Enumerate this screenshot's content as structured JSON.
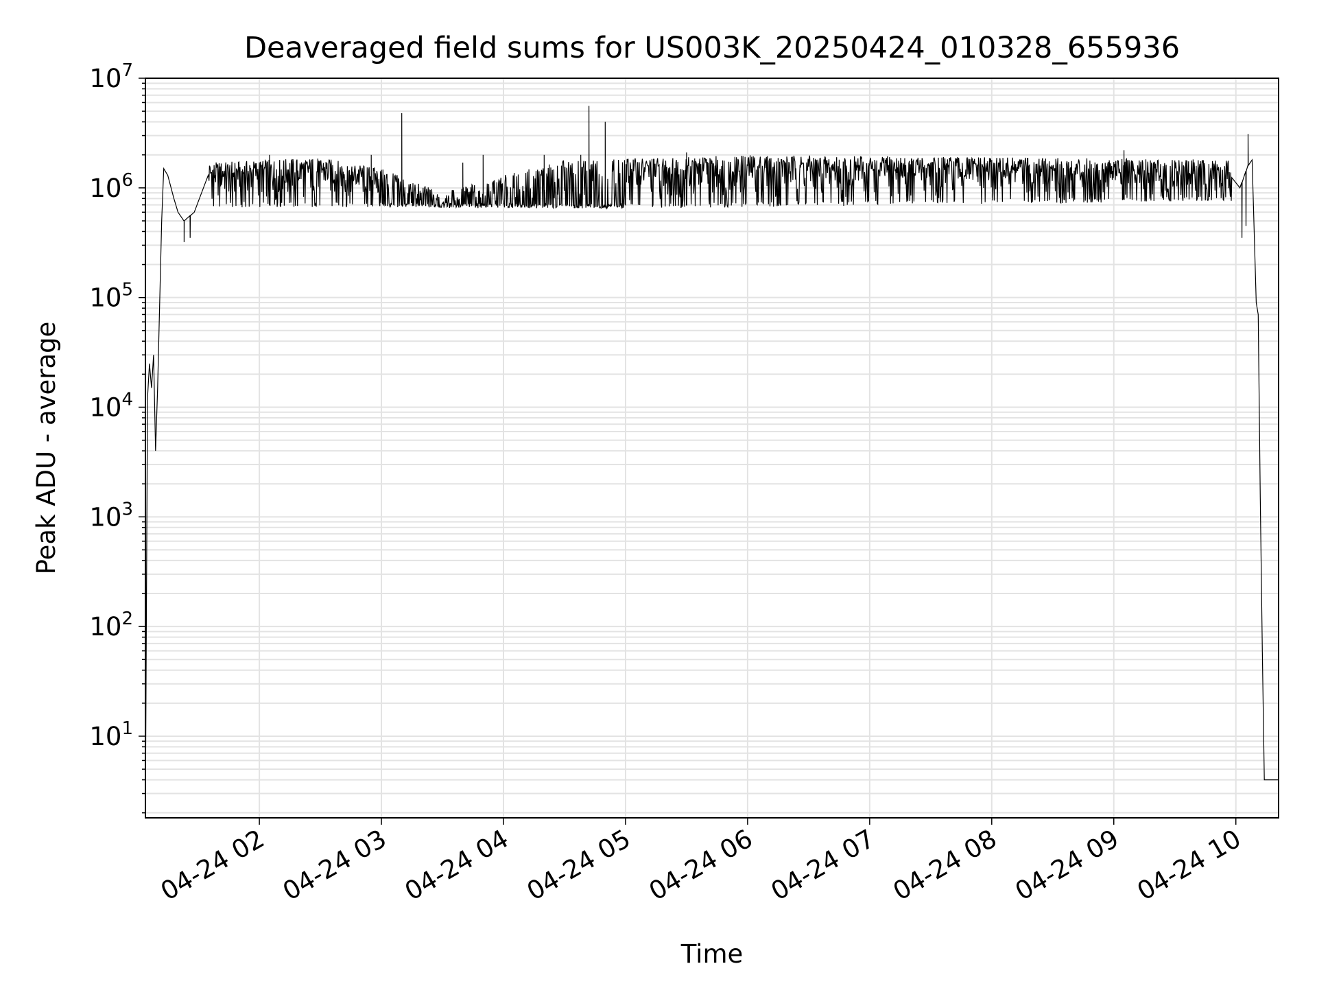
{
  "chart_data": {
    "type": "line",
    "title": "Deaveraged field sums for US003K_20250424_010328_655936",
    "xlabel": "Time",
    "ylabel": "Peak ADU - average",
    "yscale": "log",
    "ylim": [
      1.8,
      10000000
    ],
    "xlim": [
      "2025-04-24 01:04",
      "2025-04-24 10:21"
    ],
    "x_ticks": [
      "04-24 02",
      "04-24 03",
      "04-24 04",
      "04-24 05",
      "04-24 06",
      "04-24 07",
      "04-24 08",
      "04-24 09",
      "04-24 10"
    ],
    "y_ticks": [
      {
        "value": 10,
        "base": "10",
        "exp": "1"
      },
      {
        "value": 100,
        "base": "10",
        "exp": "2"
      },
      {
        "value": 1000,
        "base": "10",
        "exp": "3"
      },
      {
        "value": 10000,
        "base": "10",
        "exp": "4"
      },
      {
        "value": 100000,
        "base": "10",
        "exp": "5"
      },
      {
        "value": 1000000,
        "base": "10",
        "exp": "6"
      },
      {
        "value": 10000000,
        "base": "10",
        "exp": "7"
      }
    ],
    "grid": true,
    "series": [
      {
        "color": "#000000",
        "baseline": [
          {
            "x": "2025-04-24 01:04",
            "y": 2
          },
          {
            "x": "2025-04-24 01:05",
            "y": 12000
          },
          {
            "x": "2025-04-24 01:06",
            "y": 25000
          },
          {
            "x": "2025-04-24 01:07",
            "y": 15000
          },
          {
            "x": "2025-04-24 01:08",
            "y": 30000
          },
          {
            "x": "2025-04-24 01:09",
            "y": 4000
          },
          {
            "x": "2025-04-24 01:10",
            "y": 15000
          },
          {
            "x": "2025-04-24 01:12",
            "y": 500000
          },
          {
            "x": "2025-04-24 01:13",
            "y": 1500000
          },
          {
            "x": "2025-04-24 01:15",
            "y": 1300000
          },
          {
            "x": "2025-04-24 01:18",
            "y": 800000
          },
          {
            "x": "2025-04-24 01:20",
            "y": 600000
          },
          {
            "x": "2025-04-24 01:23",
            "y": 500000
          },
          {
            "x": "2025-04-24 01:28",
            "y": 600000
          },
          {
            "x": "2025-04-24 01:35",
            "y": 700000
          },
          {
            "x": "2025-04-24 02:30",
            "y": 700000
          },
          {
            "x": "2025-04-24 05:00",
            "y": 680000
          },
          {
            "x": "2025-04-24 09:58",
            "y": 800000
          },
          {
            "x": "2025-04-24 10:02",
            "y": 1000000
          },
          {
            "x": "2025-04-24 10:06",
            "y": 1600000
          },
          {
            "x": "2025-04-24 10:08",
            "y": 1800000
          },
          {
            "x": "2025-04-24 10:10",
            "y": 90000
          },
          {
            "x": "2025-04-24 10:11",
            "y": 70000
          },
          {
            "x": "2025-04-24 10:12",
            "y": 1500
          },
          {
            "x": "2025-04-24 10:13",
            "y": 60
          },
          {
            "x": "2025-04-24 10:14",
            "y": 4
          },
          {
            "x": "2025-04-24 10:21",
            "y": 4
          }
        ],
        "upper_envelope": [
          {
            "x": "2025-04-24 01:35",
            "y": 1700000
          },
          {
            "x": "2025-04-24 02:30",
            "y": 1900000
          },
          {
            "x": "2025-04-24 03:00",
            "y": 1500000
          },
          {
            "x": "2025-04-24 03:30",
            "y": 900000
          },
          {
            "x": "2025-04-24 04:00",
            "y": 1300000
          },
          {
            "x": "2025-04-24 04:30",
            "y": 1800000
          },
          {
            "x": "2025-04-24 05:20",
            "y": 1900000
          },
          {
            "x": "2025-04-24 06:00",
            "y": 2000000
          },
          {
            "x": "2025-04-24 08:00",
            "y": 1900000
          },
          {
            "x": "2025-04-24 09:58",
            "y": 1800000
          }
        ],
        "spikes": [
          {
            "x": "2025-04-24 02:05",
            "y": 2000000
          },
          {
            "x": "2025-04-24 02:55",
            "y": 2000000
          },
          {
            "x": "2025-04-24 03:10",
            "y": 4800000
          },
          {
            "x": "2025-04-24 03:40",
            "y": 1700000
          },
          {
            "x": "2025-04-24 03:50",
            "y": 2000000
          },
          {
            "x": "2025-04-24 04:20",
            "y": 2000000
          },
          {
            "x": "2025-04-24 04:38",
            "y": 2000000
          },
          {
            "x": "2025-04-24 04:42",
            "y": 5600000
          },
          {
            "x": "2025-04-24 04:50",
            "y": 4000000
          },
          {
            "x": "2025-04-24 05:30",
            "y": 2100000
          },
          {
            "x": "2025-04-24 09:05",
            "y": 2200000
          },
          {
            "x": "2025-04-24 10:06",
            "y": 3100000
          }
        ],
        "dips": [
          {
            "x": "2025-04-24 01:23",
            "y": 320000
          },
          {
            "x": "2025-04-24 01:26",
            "y": 350000
          },
          {
            "x": "2025-04-24 10:03",
            "y": 350000
          },
          {
            "x": "2025-04-24 10:05",
            "y": 450000
          }
        ]
      }
    ]
  }
}
